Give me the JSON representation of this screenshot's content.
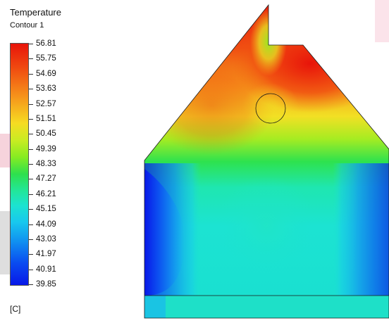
{
  "legend": {
    "title": "Temperature",
    "subtitle": "Contour 1",
    "units": "[C]",
    "levels": [
      "56.81",
      "55.75",
      "54.69",
      "53.63",
      "52.57",
      "51.51",
      "50.45",
      "49.39",
      "48.33",
      "47.27",
      "46.21",
      "45.15",
      "44.09",
      "43.03",
      "41.97",
      "40.91",
      "39.85"
    ]
  },
  "colors": {
    "hot": "#e8140a",
    "orange": "#f6941b",
    "yellow": "#f6dc22",
    "green": "#2ee04d",
    "cyan": "#1ce3d0",
    "blue": "#0818e8"
  }
}
